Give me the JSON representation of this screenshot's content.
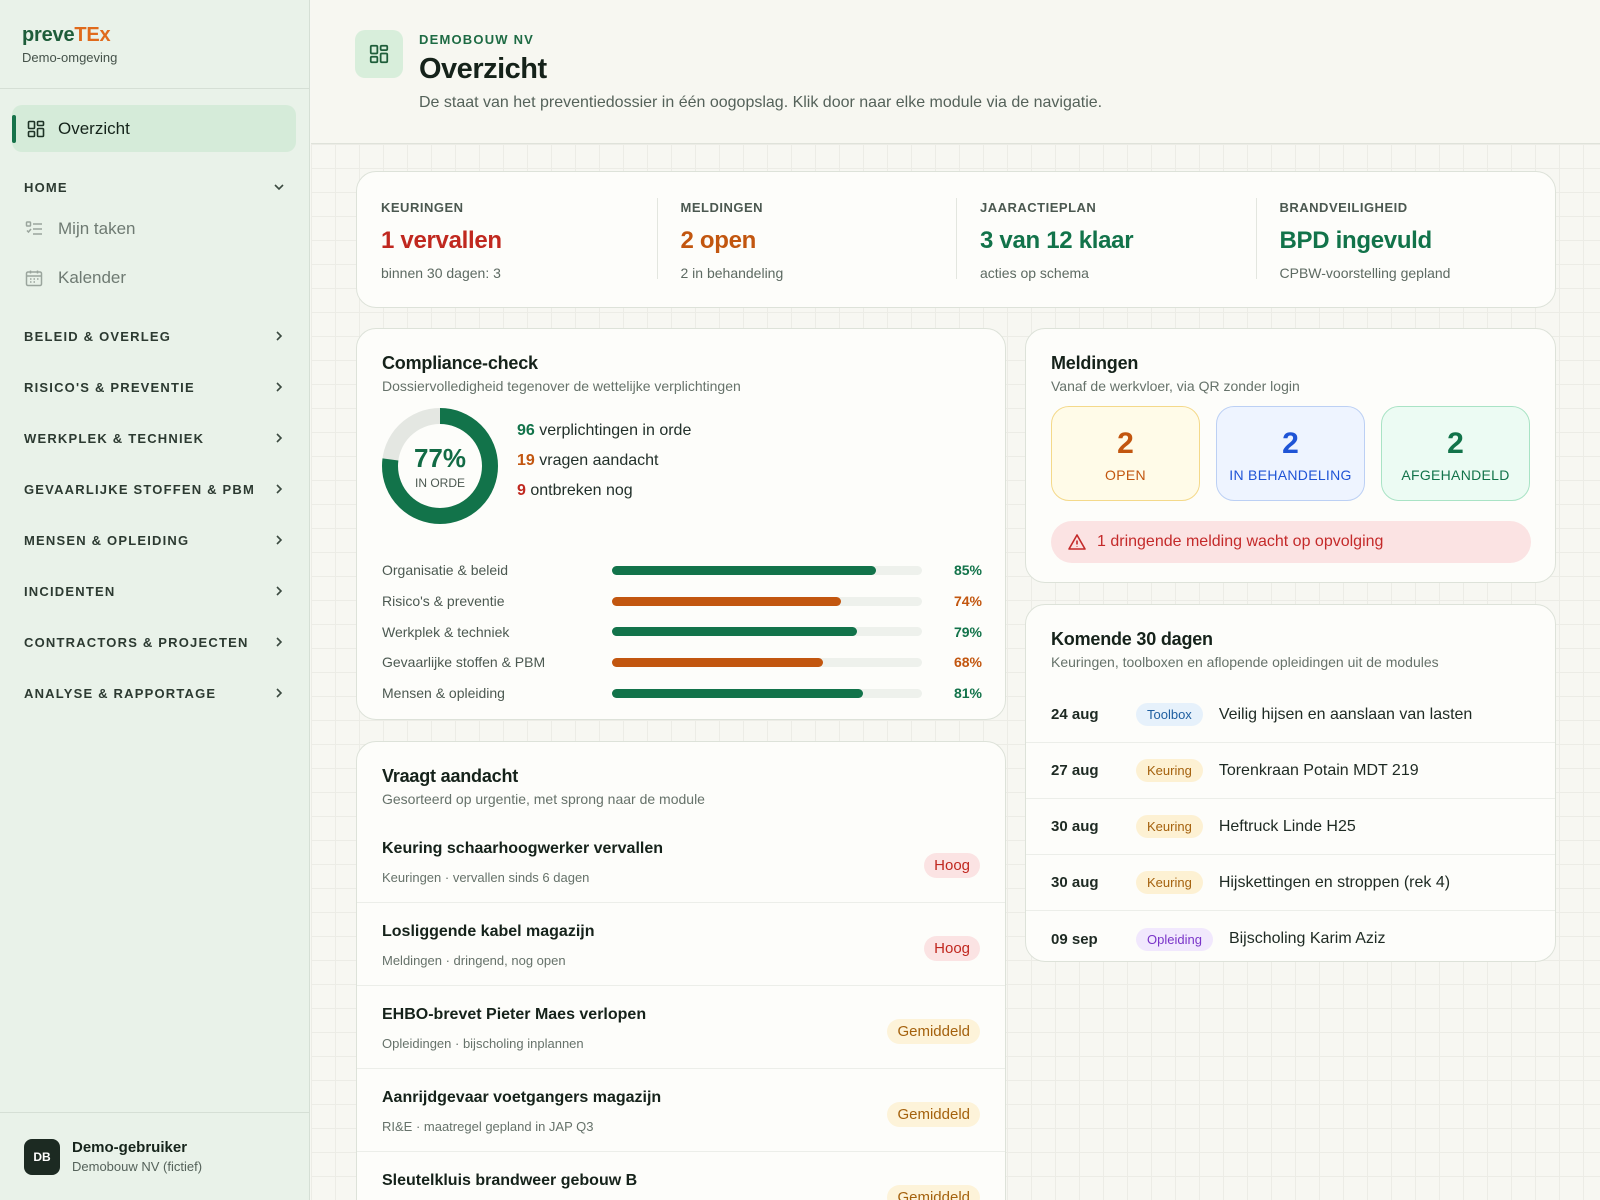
{
  "brand": {
    "name_part1": "preve",
    "name_part2": "TEx",
    "subtitle": "Demo-omgeving"
  },
  "nav": {
    "active": {
      "label": "Overzicht",
      "icon": "dashboard-icon"
    },
    "sections": [
      {
        "label": "HOME",
        "expanded": true,
        "children": [
          {
            "label": "Mijn taken",
            "icon": "task-list-icon"
          },
          {
            "label": "Kalender",
            "icon": "calendar-icon"
          }
        ]
      },
      {
        "label": "BELEID & OVERLEG"
      },
      {
        "label": "RISICO'S & PREVENTIE"
      },
      {
        "label": "WERKPLEK & TECHNIEK"
      },
      {
        "label": "GEVAARLIJKE STOFFEN & PBM"
      },
      {
        "label": "MENSEN & OPLEIDING"
      },
      {
        "label": "INCIDENTEN"
      },
      {
        "label": "CONTRACTORS & PROJECTEN"
      },
      {
        "label": "ANALYSE & RAPPORTAGE"
      }
    ]
  },
  "user": {
    "initials": "DB",
    "name": "Demo-gebruiker",
    "org": "Demobouw NV (fictief)"
  },
  "header": {
    "kicker": "DEMOBOUW NV",
    "title": "Overzicht",
    "description": "De staat van het preventiedossier in één oogopslag. Klik door naar elke module via de navigatie."
  },
  "kpis": [
    {
      "label": "KEURINGEN",
      "value": "1 vervallen",
      "sub": "binnen 30 dagen: 3",
      "color": "#c0281f"
    },
    {
      "label": "MELDINGEN",
      "value": "2 open",
      "sub": "2 in behandeling",
      "color": "#c2560f"
    },
    {
      "label": "JAARACTIEPLAN",
      "value": "3 van 12 klaar",
      "sub": "acties op schema",
      "color": "#12734a"
    },
    {
      "label": "BRANDVEILIGHEID",
      "value": "BPD ingevuld",
      "sub": "CPBW-voorstelling gepland",
      "color": "#12734a"
    }
  ],
  "compliance": {
    "title": "Compliance-check",
    "subtitle": "Dossiervolledigheid tegenover de wettelijke verplichtingen",
    "percent_label": "77%",
    "percent": 77,
    "status_label": "IN ORDE",
    "stats": [
      {
        "count": "96",
        "text": "verplichtingen in orde",
        "color": "#12734a"
      },
      {
        "count": "19",
        "text": "vragen aandacht",
        "color": "#c2560f"
      },
      {
        "count": "9",
        "text": "ontbreken nog",
        "color": "#c0281f"
      }
    ],
    "bars": [
      {
        "label": "Organisatie & beleid",
        "pct": 85,
        "pct_label": "85%",
        "color": "#12734a"
      },
      {
        "label": "Risico's & preventie",
        "pct": 74,
        "pct_label": "74%",
        "color": "#c2560f"
      },
      {
        "label": "Werkplek & techniek",
        "pct": 79,
        "pct_label": "79%",
        "color": "#12734a"
      },
      {
        "label": "Gevaarlijke stoffen & PBM",
        "pct": 68,
        "pct_label": "68%",
        "color": "#c2560f"
      },
      {
        "label": "Mensen & opleiding",
        "pct": 81,
        "pct_label": "81%",
        "color": "#12734a"
      }
    ]
  },
  "meldingen": {
    "title": "Meldingen",
    "subtitle": "Vanaf de werkvloer, via QR zonder login",
    "boxes": [
      {
        "count": "2",
        "label": "OPEN",
        "color": "#c2560f",
        "bg": "#fffbe8",
        "border": "#f4d98a"
      },
      {
        "count": "2",
        "label": "IN BEHANDELING",
        "color": "#1f54d6",
        "bg": "#eef4ff",
        "border": "#bcd0f4"
      },
      {
        "count": "2",
        "label": "AFGEHANDELD",
        "color": "#12734a",
        "bg": "#ecfbf3",
        "border": "#a9e3c5"
      }
    ],
    "alert": "1 dringende melding wacht op opvolging"
  },
  "komende": {
    "title": "Komende 30 dagen",
    "subtitle": "Keuringen, toolboxen en aflopende opleidingen uit de modules",
    "items": [
      {
        "date": "24 aug",
        "type": "Toolbox",
        "title": "Veilig hijsen en aanslaan van lasten",
        "pill_bg": "#e6f1fb",
        "pill_color": "#1f5fa0"
      },
      {
        "date": "27 aug",
        "type": "Keuring",
        "title": "Torenkraan Potain MDT 219",
        "pill_bg": "#fdf1d3",
        "pill_color": "#a4610d"
      },
      {
        "date": "30 aug",
        "type": "Keuring",
        "title": "Heftruck Linde H25",
        "pill_bg": "#fdf1d3",
        "pill_color": "#a4610d"
      },
      {
        "date": "30 aug",
        "type": "Keuring",
        "title": "Hijskettingen en stroppen (rek 4)",
        "pill_bg": "#fdf1d3",
        "pill_color": "#a4610d"
      },
      {
        "date": "09 sep",
        "type": "Opleiding",
        "title": "Bijscholing Karim Aziz",
        "pill_bg": "#f1e8fd",
        "pill_color": "#7a34c9"
      }
    ]
  },
  "attention": {
    "title": "Vraagt aandacht",
    "subtitle": "Gesorteerd op urgentie, met sprong naar de module",
    "items": [
      {
        "title": "Keuring schaarhoogwerker vervallen",
        "sub": "Keuringen · vervallen sinds 6 dagen",
        "badge": "Hoog",
        "badge_bg": "#fbe3e3",
        "badge_color": "#c0281f"
      },
      {
        "title": "Losliggende kabel magazijn",
        "sub": "Meldingen · dringend, nog open",
        "badge": "Hoog",
        "badge_bg": "#fbe3e3",
        "badge_color": "#c0281f"
      },
      {
        "title": "EHBO-brevet Pieter Maes verlopen",
        "sub": "Opleidingen · bijscholing inplannen",
        "badge": "Gemiddeld",
        "badge_bg": "#fdf3d9",
        "badge_color": "#a4610d"
      },
      {
        "title": "Aanrijdgevaar voetgangers magazijn",
        "sub": "RI&E · maatregel gepland in JAP Q3",
        "badge": "Gemiddeld",
        "badge_bg": "#fdf3d9",
        "badge_color": "#a4610d"
      },
      {
        "title": "Sleutelkluis brandweer gebouw B",
        "sub": "",
        "badge": "Gemiddeld",
        "badge_bg": "#fdf3d9",
        "badge_color": "#a4610d"
      }
    ]
  }
}
